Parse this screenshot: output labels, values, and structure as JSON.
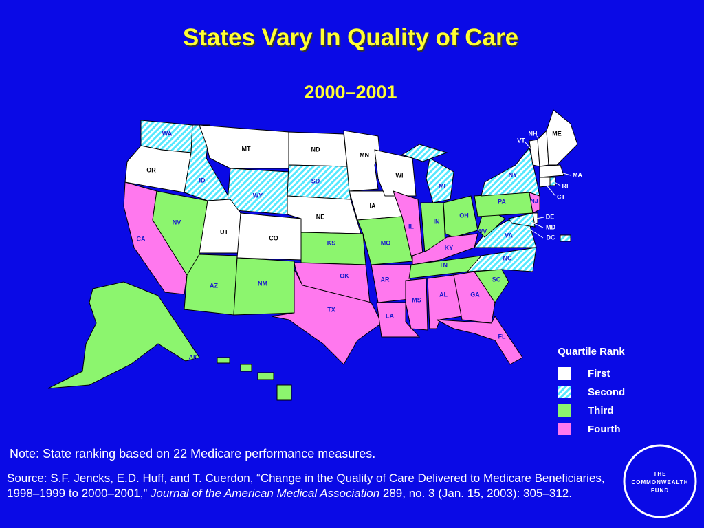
{
  "title": "States Vary In Quality of Care",
  "subtitle": "2000–2001",
  "legend": {
    "title": "Quartile Rank",
    "items": [
      {
        "label": "First",
        "color": "#ffffff"
      },
      {
        "label": "Second",
        "color": "#55e8ff",
        "pattern": "hatched"
      },
      {
        "label": "Third",
        "color": "#8cf56e"
      },
      {
        "label": "Fourth",
        "color": "#ff78ee"
      }
    ]
  },
  "states": [
    {
      "label": "WA",
      "quartile": 2
    },
    {
      "label": "OR",
      "quartile": 1
    },
    {
      "label": "CA",
      "quartile": 4
    },
    {
      "label": "NV",
      "quartile": 3
    },
    {
      "label": "ID",
      "quartile": 2
    },
    {
      "label": "MT",
      "quartile": 1
    },
    {
      "label": "WY",
      "quartile": 2
    },
    {
      "label": "UT",
      "quartile": 1
    },
    {
      "label": "CO",
      "quartile": 1
    },
    {
      "label": "AZ",
      "quartile": 3
    },
    {
      "label": "NM",
      "quartile": 3
    },
    {
      "label": "ND",
      "quartile": 1
    },
    {
      "label": "SD",
      "quartile": 2
    },
    {
      "label": "NE",
      "quartile": 1
    },
    {
      "label": "KS",
      "quartile": 3
    },
    {
      "label": "OK",
      "quartile": 4
    },
    {
      "label": "TX",
      "quartile": 4
    },
    {
      "label": "MN",
      "quartile": 1
    },
    {
      "label": "IA",
      "quartile": 1
    },
    {
      "label": "MO",
      "quartile": 3
    },
    {
      "label": "AR",
      "quartile": 4
    },
    {
      "label": "LA",
      "quartile": 4
    },
    {
      "label": "WI",
      "quartile": 1
    },
    {
      "label": "IL",
      "quartile": 4
    },
    {
      "label": "MI",
      "quartile": 2
    },
    {
      "label": "IN",
      "quartile": 3
    },
    {
      "label": "OH",
      "quartile": 3
    },
    {
      "label": "KY",
      "quartile": 4
    },
    {
      "label": "TN",
      "quartile": 3
    },
    {
      "label": "MS",
      "quartile": 4
    },
    {
      "label": "AL",
      "quartile": 4
    },
    {
      "label": "GA",
      "quartile": 4
    },
    {
      "label": "FL",
      "quartile": 4
    },
    {
      "label": "SC",
      "quartile": 3
    },
    {
      "label": "NC",
      "quartile": 2
    },
    {
      "label": "VA",
      "quartile": 2
    },
    {
      "label": "WV",
      "quartile": 3
    },
    {
      "label": "PA",
      "quartile": 3
    },
    {
      "label": "NY",
      "quartile": 2
    },
    {
      "label": "NJ",
      "quartile": 4
    },
    {
      "label": "VT",
      "quartile": 1
    },
    {
      "label": "NH",
      "quartile": 1
    },
    {
      "label": "ME",
      "quartile": 1
    },
    {
      "label": "MA",
      "quartile": 1
    },
    {
      "label": "CT",
      "quartile": 1
    },
    {
      "label": "RI",
      "quartile": 2
    },
    {
      "label": "DE",
      "quartile": 1
    },
    {
      "label": "MD",
      "quartile": 2
    },
    {
      "label": "DC",
      "quartile": 2
    },
    {
      "label": "AK",
      "quartile": 3
    },
    {
      "label": null,
      "quartile": 3
    }
  ],
  "note": "Note: State ranking based on 22 Medicare performance measures.",
  "source": [
    "Source: S.F. Jencks, E.D. Huff, and T. Cuerdon, “Change in the Quality of Care Delivered to Medicare Beneficiaries, 1998–1999 to 2000–2001,” ",
    "Journal of the American Medical Association",
    " 289, no. 3 (Jan. 15, 2003): 305–312."
  ],
  "logo": [
    "THE",
    "COMMONWEALTH",
    "FUND"
  ]
}
